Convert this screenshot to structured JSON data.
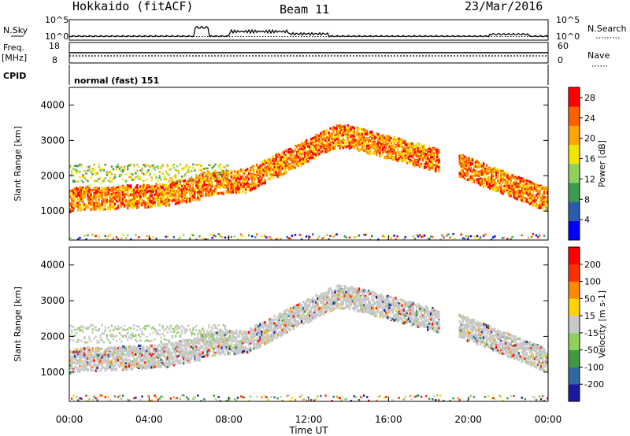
{
  "header": {
    "station": "Hokkaido (fitACF)",
    "beam": "Beam 11",
    "date": "23/Mar/2016"
  },
  "status_panels": {
    "nsky_label": "N.Sky",
    "nsearch_label": "N.Search",
    "freq_label": "Freq.",
    "freq_unit": "[MHz]",
    "nave_label": "Nave",
    "cpid_label": "CPID",
    "cpid_text": "normal (fast) 151",
    "noise_ticks": [
      "10^5",
      "10^0"
    ],
    "freq_ticks": [
      "18",
      "8"
    ],
    "nave_ticks": [
      "60",
      "0"
    ]
  },
  "chart_data": [
    {
      "type": "heatmap",
      "name": "power",
      "ylabel": "Slant Range [km]",
      "xlabel": "Time UT",
      "xlim": [
        "00:00",
        "24:00"
      ],
      "ylim": [
        180,
        4500
      ],
      "y_ticks": [
        1000,
        2000,
        3000,
        4000
      ],
      "colorbar_label": "Power [dB]",
      "colorbar_ticks": [
        4,
        8,
        12,
        16,
        20,
        24,
        28
      ],
      "colorbar_range": [
        0,
        30
      ],
      "colors": [
        "#0000ff",
        "#2a5caa",
        "#3e9a4e",
        "#8fd15c",
        "#f2e600",
        "#ffa500",
        "#ff6000",
        "#ff0000"
      ]
    },
    {
      "type": "heatmap",
      "name": "velocity",
      "ylabel": "Slant Range [km]",
      "xlabel": "Time UT",
      "xlim": [
        "00:00",
        "24:00"
      ],
      "ylim": [
        180,
        4500
      ],
      "y_ticks": [
        1000,
        2000,
        3000,
        4000
      ],
      "colorbar_label": "Velocity [m s-1]",
      "colorbar_ticks": [
        200,
        100,
        50,
        15,
        -15,
        -50,
        -100,
        -200
      ],
      "colors": [
        "#1a1aa0",
        "#2f6a9e",
        "#3f9a3f",
        "#8fd15c",
        "#c8c8c8",
        "#ffd400",
        "#ff8c00",
        "#ff3000",
        "#ff0000"
      ]
    }
  ],
  "x_axis": {
    "ticks": [
      "00:00",
      "04:00",
      "08:00",
      "12:00",
      "16:00",
      "20:00",
      "00:00"
    ],
    "label": "Time UT"
  }
}
